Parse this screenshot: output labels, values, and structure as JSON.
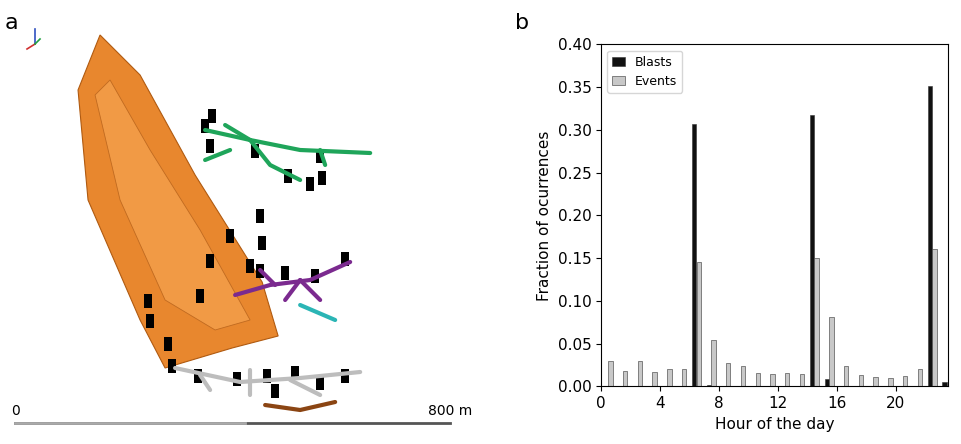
{
  "panel_a": {
    "label": "a",
    "scale_bar": {
      "start_label": "0",
      "end_label": "800 m"
    }
  },
  "chart_data": {
    "type": "bar",
    "panel_label": "b",
    "x": [
      0,
      1,
      2,
      3,
      4,
      5,
      6,
      7,
      8,
      9,
      10,
      11,
      12,
      13,
      14,
      15,
      16,
      17,
      18,
      19,
      20,
      21,
      22,
      23
    ],
    "series": [
      {
        "name": "Blasts",
        "color": "#111111",
        "values": [
          0,
          0,
          0,
          0,
          0,
          0,
          0.307,
          0.002,
          0,
          0,
          0,
          0,
          0,
          0,
          0.317,
          0.008,
          0,
          0,
          0,
          0,
          0,
          0,
          0.351,
          0.005
        ]
      },
      {
        "name": "Events",
        "color": "#c8c8c8",
        "values": [
          0.03,
          0.018,
          0.029,
          0.017,
          0.02,
          0.02,
          0.145,
          0.054,
          0.027,
          0.024,
          0.015,
          0.014,
          0.016,
          0.014,
          0.15,
          0.081,
          0.024,
          0.013,
          0.011,
          0.01,
          0.012,
          0.02,
          0.161,
          null
        ]
      }
    ],
    "x_label": "Hour of the day",
    "y_label": "Fraction of ocurrences",
    "xlim": [
      0,
      23.5
    ],
    "xticks": [
      0,
      4,
      8,
      12,
      16,
      20
    ],
    "ylim": [
      0,
      0.4
    ],
    "yticks": [
      {
        "value": 0,
        "label": "0.00"
      },
      {
        "value": 0.05,
        "label": "0.05"
      },
      {
        "value": 0.1,
        "label": "0.10"
      },
      {
        "value": 0.15,
        "label": "0.15"
      },
      {
        "value": 0.2,
        "label": "0.20"
      },
      {
        "value": 0.25,
        "label": "0.25"
      },
      {
        "value": 0.3,
        "label": "0.30"
      },
      {
        "value": 0.35,
        "label": "0.35"
      },
      {
        "value": 0.4,
        "label": "0.40"
      }
    ],
    "legend": "upper left"
  }
}
